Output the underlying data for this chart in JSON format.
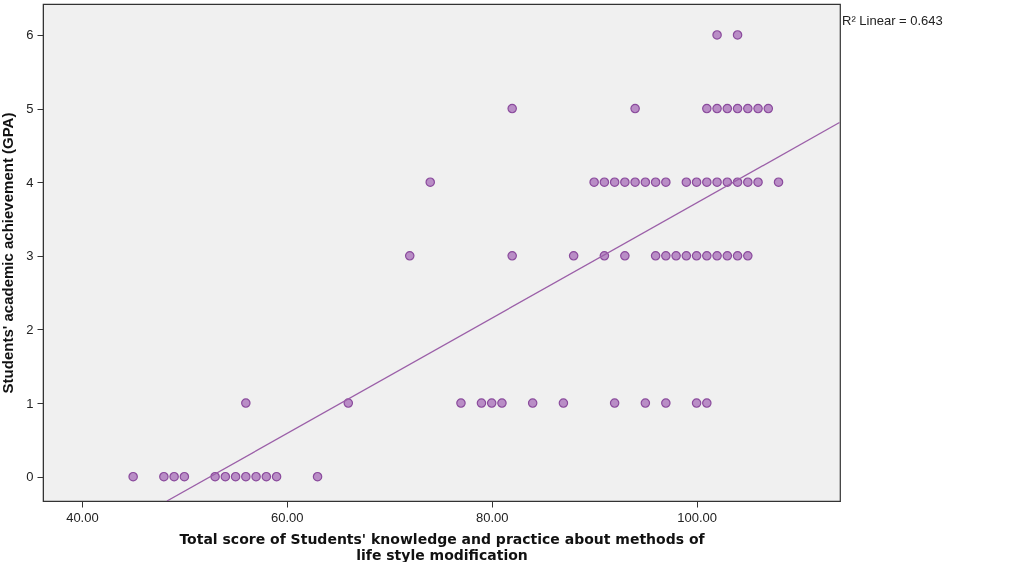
{
  "chart_data": {
    "type": "scatter",
    "xlabel": "Total score of Students' knowledge and practice about methods of life style modification",
    "ylabel": "Students' academic achievement (GPA)",
    "annotations": [
      "R² Linear = 0.643"
    ],
    "xlim": [
      36.2,
      114
    ],
    "ylim": [
      -0.33,
      6.42
    ],
    "xticks": [
      {
        "value": 40,
        "label": "40.00"
      },
      {
        "value": 60,
        "label": "60.00"
      },
      {
        "value": 80,
        "label": "80.00"
      },
      {
        "value": 100,
        "label": "100.00"
      }
    ],
    "yticks": [
      0,
      1,
      2,
      3,
      4,
      5,
      6
    ],
    "grid": false,
    "marker": "circle",
    "series": [
      {
        "color": "#b98dc6",
        "x": [
          45,
          48,
          49,
          50,
          53,
          54,
          55,
          56,
          57,
          58,
          59,
          63,
          56,
          66,
          77,
          79,
          80,
          81,
          84,
          87,
          92,
          95,
          97,
          100,
          101,
          72,
          82,
          88,
          91,
          93,
          96,
          97,
          98,
          99,
          100,
          101,
          102,
          103,
          104,
          105,
          74,
          90,
          91,
          92,
          93,
          94,
          95,
          96,
          97,
          99,
          100,
          101,
          102,
          103,
          104,
          105,
          106,
          108,
          82,
          94,
          101,
          102,
          103,
          104,
          105,
          106,
          107,
          102,
          104
        ],
        "values": [
          0,
          0,
          0,
          0,
          0,
          0,
          0,
          0,
          0,
          0,
          0,
          0,
          1,
          1,
          1,
          1,
          1,
          1,
          1,
          1,
          1,
          1,
          1,
          1,
          1,
          3,
          3,
          3,
          3,
          3,
          3,
          3,
          3,
          3,
          3,
          3,
          3,
          3,
          3,
          3,
          4,
          4,
          4,
          4,
          4,
          4,
          4,
          4,
          4,
          4,
          4,
          4,
          4,
          4,
          4,
          4,
          4,
          4,
          5,
          5,
          5,
          5,
          5,
          5,
          5,
          5,
          5,
          6,
          6
        ]
      },
      {
        "type": "line",
        "color": "#9b5fa8",
        "line_style": "solid",
        "marker": "none",
        "x": [
          48.3,
          113.95
        ],
        "values": [
          -0.33,
          4.81
        ]
      }
    ]
  }
}
